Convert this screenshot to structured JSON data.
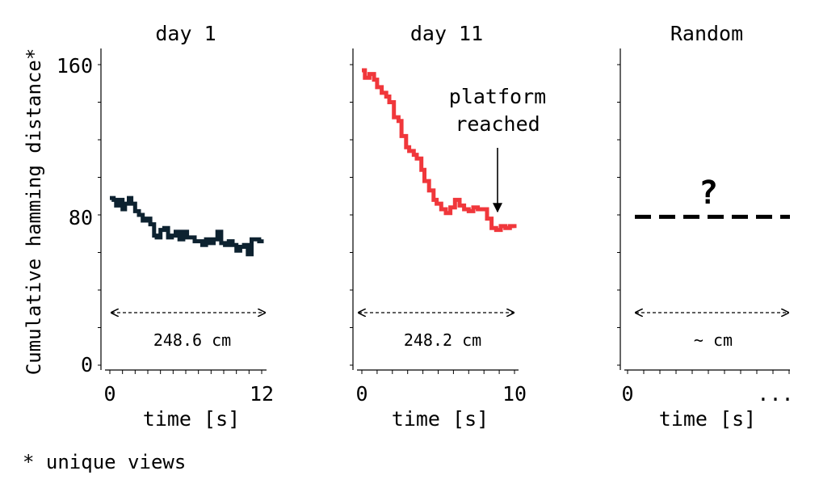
{
  "ylabel": "Cumulative hamming distance*",
  "footnote": "* unique views",
  "colors": {
    "day1": "#0d2230",
    "day11": "#f0373b",
    "random": "#000000"
  },
  "chart_data": [
    {
      "type": "line",
      "title": "day 1",
      "xlabel": "time [s]",
      "ylabel": "Cumulative hamming distance*",
      "xlim": [
        0,
        12
      ],
      "ylim": [
        0,
        160
      ],
      "xtick_labels": [
        "0",
        "12"
      ],
      "ytick_labels": [
        "0",
        "80",
        "160"
      ],
      "distance_label": "248.6 cm",
      "series": [
        {
          "color": "#0d2230",
          "x": [
            0,
            0.3,
            0.5,
            0.8,
            1.0,
            1.2,
            1.5,
            1.7,
            2.0,
            2.3,
            2.6,
            2.9,
            3.2,
            3.5,
            3.7,
            4.0,
            4.3,
            4.6,
            4.9,
            5.2,
            5.5,
            5.8,
            6.1,
            6.4,
            6.7,
            7.0,
            7.3,
            7.6,
            7.9,
            8.2,
            8.5,
            8.8,
            9.1,
            9.4,
            9.7,
            10.0,
            10.3,
            10.6,
            10.9,
            11.2,
            11.5,
            11.8,
            12.0
          ],
          "y": [
            89,
            88,
            85,
            88,
            83,
            86,
            89,
            86,
            82,
            80,
            77,
            78,
            75,
            69,
            68,
            72,
            73,
            68,
            69,
            71,
            67,
            71,
            68,
            68,
            66,
            66,
            64,
            67,
            65,
            67,
            71,
            65,
            64,
            66,
            64,
            61,
            63,
            64,
            59,
            67,
            67,
            66,
            67
          ]
        }
      ]
    },
    {
      "type": "line",
      "title": "day 11",
      "xlabel": "time [s]",
      "xlim": [
        0,
        10
      ],
      "ylim": [
        0,
        160
      ],
      "xtick_labels": [
        "0",
        "10"
      ],
      "distance_label": "248.2 cm",
      "annotation": "platform\nreached",
      "annotation_x": 9.0,
      "series": [
        {
          "color": "#f0373b",
          "x": [
            0,
            0.2,
            0.5,
            0.8,
            1.0,
            1.3,
            1.6,
            1.8,
            2.1,
            2.4,
            2.6,
            2.9,
            3.1,
            3.4,
            3.6,
            3.9,
            4.1,
            4.4,
            4.7,
            4.9,
            5.2,
            5.5,
            5.8,
            6.1,
            6.4,
            6.7,
            7.0,
            7.3,
            7.6,
            7.9,
            8.2,
            8.5,
            8.8,
            9.1,
            9.4,
            9.7,
            10.0
          ],
          "y": [
            157,
            153,
            155,
            152,
            148,
            145,
            143,
            140,
            132,
            130,
            122,
            116,
            114,
            112,
            110,
            104,
            98,
            93,
            88,
            86,
            83,
            81,
            84,
            88,
            85,
            83,
            82,
            84,
            83,
            83,
            78,
            73,
            72,
            74,
            73,
            74,
            73
          ]
        }
      ]
    },
    {
      "type": "line",
      "title": "Random",
      "xlabel": "time [s]",
      "xtick_labels": [
        "0",
        "..."
      ],
      "distance_label": "~ cm",
      "annotation": "?",
      "series": [
        {
          "color": "#000000",
          "style": "dashed",
          "y_constant": 79
        }
      ]
    }
  ]
}
